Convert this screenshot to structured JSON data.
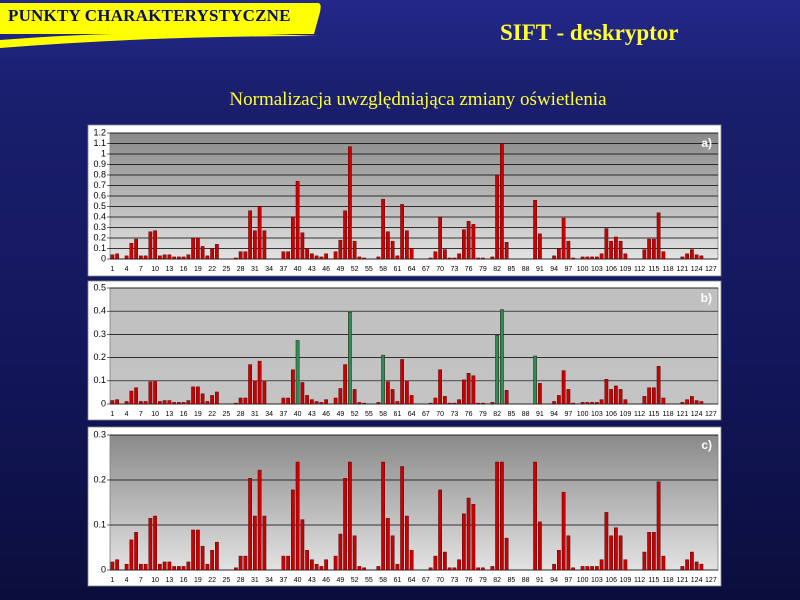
{
  "header": {
    "banner": "PUNKTY CHARAKTERYSTYCZNE",
    "title": "SIFT - deskryptor",
    "subtitle": "Normalizacja uwzględniająca zmiany oświetlenia"
  },
  "chart_data": [
    {
      "type": "bar",
      "panel_label": "a)",
      "color": "#cc0000",
      "grid": true,
      "categories": [
        "1",
        null,
        null,
        "4",
        null,
        null,
        "7",
        null,
        null,
        "10",
        null,
        null,
        "13",
        null,
        null,
        "16",
        null,
        null,
        "19",
        null,
        null,
        "22",
        null,
        null,
        "25",
        null,
        null,
        "28",
        null,
        null,
        "31",
        null,
        null,
        "34",
        null,
        null,
        "37",
        null,
        null,
        "40",
        null,
        null,
        "43",
        null,
        null,
        "46",
        null,
        null,
        "49",
        null,
        null,
        "52",
        null,
        null,
        "55",
        null,
        null,
        "58",
        null,
        null,
        "61",
        null,
        null,
        "64",
        null,
        null,
        "67",
        null,
        null,
        "70",
        null,
        null,
        "73",
        null,
        null,
        "76",
        null,
        null,
        "79",
        null,
        null,
        "82",
        null,
        null,
        "85",
        null,
        null,
        "88",
        null,
        null,
        "91",
        null,
        null,
        "94",
        null,
        null,
        "97",
        null,
        null,
        "100",
        null,
        null,
        "103",
        null,
        null,
        "106",
        null,
        null,
        "109",
        null,
        null,
        "112",
        null,
        null,
        "115",
        null,
        null,
        "118",
        null,
        null,
        "121",
        null,
        null,
        "124",
        null,
        null,
        "127",
        null
      ],
      "values": [
        0.04,
        0.05,
        0,
        0.03,
        0.15,
        0.19,
        0.03,
        0.03,
        0.26,
        0.27,
        0.03,
        0.04,
        0.04,
        0.02,
        0.02,
        0.02,
        0.04,
        0.2,
        0.2,
        0.12,
        0.03,
        0.1,
        0.14,
        0,
        0,
        0,
        0.01,
        0.07,
        0.07,
        0.46,
        0.27,
        0.5,
        0.27,
        0,
        0,
        0,
        0.07,
        0.07,
        0.4,
        0.74,
        0.25,
        0.1,
        0.05,
        0.03,
        0.02,
        0.05,
        0,
        0.07,
        0.18,
        0.46,
        1.07,
        0.17,
        0.02,
        0.01,
        0,
        0,
        0.02,
        0.57,
        0.26,
        0.17,
        0.03,
        0.52,
        0.27,
        0.1,
        0,
        0,
        0,
        0.01,
        0.07,
        0.4,
        0.09,
        0.01,
        0.01,
        0.05,
        0.28,
        0.36,
        0.33,
        0.01,
        0.01,
        0,
        0.02,
        0.8,
        1.1,
        0.16,
        0,
        0,
        0,
        0,
        0,
        0.56,
        0.24,
        0,
        0,
        0.03,
        0.1,
        0.39,
        0.17,
        0.01,
        0,
        0.02,
        0.02,
        0.02,
        0.02,
        0.05,
        0.29,
        0.17,
        0.21,
        0.17,
        0.05,
        0,
        0,
        0,
        0.09,
        0.19,
        0.19,
        0.44,
        0.07,
        0,
        0,
        0,
        0.02,
        0.05,
        0.09,
        0.04,
        0.03,
        0,
        0,
        0
      ],
      "ylim": [
        0,
        1.2
      ],
      "yticks": [
        0,
        0.1,
        0.2,
        0.3,
        0.4,
        0.5,
        0.6,
        0.7,
        0.8,
        0.9,
        1,
        1.1,
        1.2
      ]
    },
    {
      "type": "bar",
      "panel_label": "b)",
      "grid": true,
      "categories": [
        "1",
        null,
        null,
        "4",
        null,
        null,
        "7",
        null,
        null,
        "10",
        null,
        null,
        "13",
        null,
        null,
        "16",
        null,
        null,
        "19",
        null,
        null,
        "22",
        null,
        null,
        "25",
        null,
        null,
        "28",
        null,
        null,
        "31",
        null,
        null,
        "34",
        null,
        null,
        "37",
        null,
        null,
        "40",
        null,
        null,
        "43",
        null,
        null,
        "46",
        null,
        null,
        "49",
        null,
        null,
        "52",
        null,
        null,
        "55",
        null,
        null,
        "58",
        null,
        null,
        "61",
        null,
        null,
        "64",
        null,
        null,
        "67",
        null,
        null,
        "70",
        null,
        null,
        "73",
        null,
        null,
        "76",
        null,
        null,
        "79",
        null,
        null,
        "82",
        null,
        null,
        "85",
        null,
        null,
        "88",
        null,
        null,
        "91",
        null,
        null,
        "94",
        null,
        null,
        "97",
        null,
        null,
        "100",
        null,
        null,
        "103",
        null,
        null,
        "106",
        null,
        null,
        "109",
        null,
        null,
        "112",
        null,
        null,
        "115",
        null,
        null,
        "118",
        null,
        null,
        "121",
        null,
        null,
        "124",
        null,
        null,
        "127",
        null
      ],
      "values": [
        0.015,
        0.019,
        0,
        0.011,
        0.056,
        0.07,
        0.011,
        0.011,
        0.096,
        0.1,
        0.011,
        0.015,
        0.015,
        0.007,
        0.007,
        0.007,
        0.015,
        0.074,
        0.074,
        0.044,
        0.011,
        0.037,
        0.052,
        0,
        0,
        0,
        0.004,
        0.026,
        0.026,
        0.17,
        0.1,
        0.185,
        0.1,
        0,
        0,
        0,
        0.026,
        0.026,
        0.148,
        0.274,
        0.093,
        0.037,
        0.019,
        0.011,
        0.007,
        0.019,
        0,
        0.026,
        0.067,
        0.17,
        0.396,
        0.063,
        0.007,
        0.004,
        0,
        0,
        0.007,
        0.211,
        0.096,
        0.063,
        0.011,
        0.192,
        0.1,
        0.037,
        0,
        0,
        0,
        0.004,
        0.026,
        0.148,
        0.033,
        0.004,
        0.004,
        0.019,
        0.104,
        0.133,
        0.122,
        0.004,
        0.004,
        0,
        0.007,
        0.296,
        0.407,
        0.059,
        0,
        0,
        0,
        0,
        0,
        0.207,
        0.089,
        0,
        0,
        0.011,
        0.037,
        0.144,
        0.063,
        0.004,
        0,
        0.007,
        0.007,
        0.007,
        0.007,
        0.019,
        0.107,
        0.063,
        0.078,
        0.063,
        0.019,
        0,
        0,
        0,
        0.033,
        0.07,
        0.07,
        0.163,
        0.026,
        0,
        0,
        0,
        0.007,
        0.019,
        0.033,
        0.015,
        0.011,
        0,
        0,
        0
      ],
      "colors": [
        "#cc0000",
        "#cc0000",
        "#cc0000",
        "#cc0000",
        "#cc0000",
        "#cc0000",
        "#cc0000",
        "#cc0000",
        "#cc0000",
        "#cc0000",
        "#cc0000",
        "#cc0000",
        "#cc0000",
        "#cc0000",
        "#cc0000",
        "#cc0000",
        "#cc0000",
        "#cc0000",
        "#cc0000",
        "#cc0000",
        "#cc0000",
        "#cc0000",
        "#cc0000",
        "#cc0000",
        "#cc0000",
        "#cc0000",
        "#cc0000",
        "#cc0000",
        "#cc0000",
        "#cc0000",
        "#cc0000",
        "#cc0000",
        "#cc0000",
        "#cc0000",
        "#cc0000",
        "#cc0000",
        "#cc0000",
        "#cc0000",
        "#cc0000",
        "#2e8b57",
        "#cc0000",
        "#cc0000",
        "#cc0000",
        "#cc0000",
        "#cc0000",
        "#cc0000",
        "#cc0000",
        "#cc0000",
        "#cc0000",
        "#cc0000",
        "#2e8b57",
        "#cc0000",
        "#cc0000",
        "#cc0000",
        "#cc0000",
        "#cc0000",
        "#cc0000",
        "#2e8b57",
        "#cc0000",
        "#cc0000",
        "#cc0000",
        "#cc0000",
        "#cc0000",
        "#cc0000",
        "#cc0000",
        "#cc0000",
        "#cc0000",
        "#cc0000",
        "#cc0000",
        "#cc0000",
        "#cc0000",
        "#cc0000",
        "#cc0000",
        "#cc0000",
        "#cc0000",
        "#cc0000",
        "#cc0000",
        "#cc0000",
        "#cc0000",
        "#cc0000",
        "#cc0000",
        "#2e8b57",
        "#2e8b57",
        "#cc0000",
        "#cc0000",
        "#cc0000",
        "#cc0000",
        "#cc0000",
        "#cc0000",
        "#2e8b57",
        "#cc0000",
        "#cc0000",
        "#cc0000",
        "#cc0000",
        "#cc0000",
        "#cc0000",
        "#cc0000",
        "#cc0000",
        "#cc0000",
        "#cc0000",
        "#cc0000",
        "#cc0000",
        "#cc0000",
        "#cc0000",
        "#cc0000",
        "#cc0000",
        "#cc0000",
        "#cc0000",
        "#cc0000",
        "#cc0000",
        "#cc0000",
        "#cc0000",
        "#cc0000",
        "#cc0000",
        "#cc0000",
        "#cc0000",
        "#cc0000",
        "#cc0000",
        "#cc0000",
        "#cc0000",
        "#cc0000",
        "#cc0000",
        "#cc0000",
        "#cc0000",
        "#cc0000",
        "#cc0000",
        "#cc0000",
        "#cc0000"
      ],
      "ylim": [
        0,
        0.5
      ],
      "yticks": [
        0,
        0.1,
        0.2,
        0.3,
        0.4,
        0.5
      ]
    },
    {
      "type": "bar",
      "panel_label": "c)",
      "color": "#cc0000",
      "grid": true,
      "categories": [
        "1",
        null,
        null,
        "4",
        null,
        null,
        "7",
        null,
        null,
        "10",
        null,
        null,
        "13",
        null,
        null,
        "16",
        null,
        null,
        "19",
        null,
        null,
        "22",
        null,
        null,
        "25",
        null,
        null,
        "28",
        null,
        null,
        "31",
        null,
        null,
        "34",
        null,
        null,
        "37",
        null,
        null,
        "40",
        null,
        null,
        "43",
        null,
        null,
        "46",
        null,
        null,
        "49",
        null,
        null,
        "52",
        null,
        null,
        "55",
        null,
        null,
        "58",
        null,
        null,
        "61",
        null,
        null,
        "64",
        null,
        null,
        "67",
        null,
        null,
        "70",
        null,
        null,
        "73",
        null,
        null,
        "76",
        null,
        null,
        "79",
        null,
        null,
        "82",
        null,
        null,
        "85",
        null,
        null,
        "88",
        null,
        null,
        "91",
        null,
        null,
        "94",
        null,
        null,
        "97",
        null,
        null,
        "100",
        null,
        null,
        "103",
        null,
        null,
        "106",
        null,
        null,
        "109",
        null,
        null,
        "112",
        null,
        null,
        "115",
        null,
        null,
        "118",
        null,
        null,
        "121",
        null,
        null,
        "124",
        null,
        null,
        "127",
        null
      ],
      "values": [
        0.018,
        0.023,
        0,
        0.013,
        0.067,
        0.084,
        0.013,
        0.013,
        0.115,
        0.12,
        0.013,
        0.018,
        0.018,
        0.008,
        0.008,
        0.008,
        0.018,
        0.089,
        0.089,
        0.053,
        0.013,
        0.044,
        0.062,
        0,
        0,
        0,
        0.005,
        0.031,
        0.031,
        0.204,
        0.12,
        0.222,
        0.12,
        0,
        0,
        0,
        0.031,
        0.031,
        0.178,
        0.24,
        0.112,
        0.044,
        0.023,
        0.013,
        0.008,
        0.023,
        0,
        0.031,
        0.08,
        0.204,
        0.24,
        0.076,
        0.008,
        0.005,
        0,
        0,
        0.008,
        0.24,
        0.115,
        0.076,
        0.013,
        0.23,
        0.12,
        0.044,
        0,
        0,
        0,
        0.005,
        0.031,
        0.178,
        0.04,
        0.005,
        0.005,
        0.023,
        0.125,
        0.16,
        0.146,
        0.005,
        0.005,
        0,
        0.008,
        0.24,
        0.24,
        0.071,
        0,
        0,
        0,
        0,
        0,
        0.24,
        0.107,
        0,
        0,
        0.013,
        0.044,
        0.173,
        0.076,
        0.005,
        0,
        0.008,
        0.008,
        0.008,
        0.008,
        0.023,
        0.128,
        0.076,
        0.094,
        0.076,
        0.023,
        0,
        0,
        0,
        0.04,
        0.084,
        0.084,
        0.196,
        0.031,
        0,
        0,
        0,
        0.008,
        0.023,
        0.04,
        0.018,
        0.013,
        0,
        0,
        0
      ],
      "ylim": [
        0,
        0.3
      ],
      "yticks": [
        0,
        0.1,
        0.2,
        0.3
      ]
    }
  ]
}
